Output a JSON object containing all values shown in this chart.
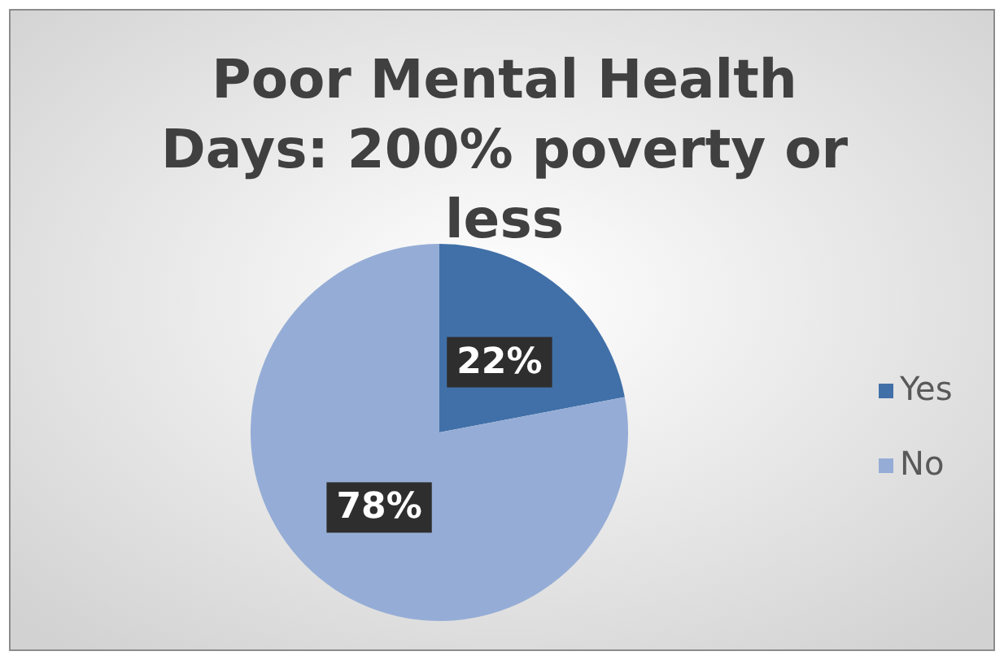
{
  "chart_data": {
    "type": "pie",
    "title": "Poor Mental Health Days: 200% poverty or less",
    "categories": [
      "Yes",
      "No"
    ],
    "values": [
      22,
      78
    ],
    "colors": [
      "#4170a8",
      "#95add6"
    ],
    "value_labels": [
      "22%",
      "78%"
    ],
    "legend": "right"
  }
}
